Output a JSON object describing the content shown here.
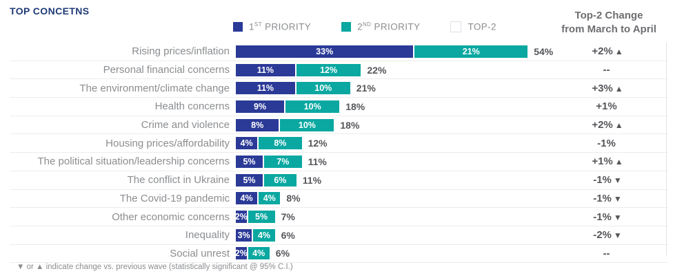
{
  "title": "TOP CONCETNS",
  "legend": {
    "items": [
      {
        "prefix": "1",
        "sup": "ST",
        "rest": " PRIORITY",
        "color": "#2b3a97",
        "style": "filled"
      },
      {
        "prefix": "2",
        "sup": "ND",
        "rest": " PRIORITY",
        "color": "#0aa8a1",
        "style": "filled"
      },
      {
        "prefix": "TOP-2",
        "sup": "",
        "rest": "",
        "color": "#ffffff",
        "style": "outline"
      }
    ]
  },
  "change_header": {
    "line1": "Top-2 Change",
    "line2": "from March to April"
  },
  "colors": {
    "first_priority": "#2b3a97",
    "second_priority": "#0aa8a1",
    "title": "#1f3b77",
    "row_label": "#8b8d90",
    "value_text": "#55565a",
    "separator": "#ececec"
  },
  "rows": [
    {
      "label": "Rising prices/inflation",
      "p1": 33,
      "p1_label": "33%",
      "p2": 21,
      "p2_label": "21%",
      "total": "54%",
      "change": "+2%",
      "arrow": "▲"
    },
    {
      "label": "Personal financial concerns",
      "p1": 11,
      "p1_label": "11%",
      "p2": 12,
      "p2_label": "12%",
      "total": "22%",
      "change": "--",
      "arrow": ""
    },
    {
      "label": "The environment/climate change",
      "p1": 11,
      "p1_label": "11%",
      "p2": 10,
      "p2_label": "10%",
      "total": "21%",
      "change": "+3%",
      "arrow": "▲"
    },
    {
      "label": "Health concerns",
      "p1": 9,
      "p1_label": "9%",
      "p2": 10,
      "p2_label": "10%",
      "total": "18%",
      "change": "+1%",
      "arrow": ""
    },
    {
      "label": "Crime and violence",
      "p1": 8,
      "p1_label": "8%",
      "p2": 10,
      "p2_label": "10%",
      "total": "18%",
      "change": "+2%",
      "arrow": "▲"
    },
    {
      "label": "Housing prices/affordability",
      "p1": 4,
      "p1_label": "4%",
      "p2": 8,
      "p2_label": "8%",
      "total": "12%",
      "change": "-1%",
      "arrow": ""
    },
    {
      "label": "The political situation/leadership concerns",
      "p1": 5,
      "p1_label": "5%",
      "p2": 7,
      "p2_label": "7%",
      "total": "11%",
      "change": "+1%",
      "arrow": "▲"
    },
    {
      "label": "The conflict in Ukraine",
      "p1": 5,
      "p1_label": "5%",
      "p2": 6,
      "p2_label": "6%",
      "total": "11%",
      "change": "-1%",
      "arrow": "▼"
    },
    {
      "label": "The Covid-19 pandemic",
      "p1": 4,
      "p1_label": "4%",
      "p2": 4,
      "p2_label": "4%",
      "total": "8%",
      "change": "-1%",
      "arrow": "▼"
    },
    {
      "label": "Other economic concerns",
      "p1": 2,
      "p1_label": "2%",
      "p2": 5,
      "p2_label": "5%",
      "total": "7%",
      "change": "-1%",
      "arrow": "▼"
    },
    {
      "label": "Inequality",
      "p1": 3,
      "p1_label": "3%",
      "p2": 4,
      "p2_label": "4%",
      "total": "6%",
      "change": "-2%",
      "arrow": "▼"
    },
    {
      "label": "Social unrest",
      "p1": 2,
      "p1_label": "2%",
      "p2": 4,
      "p2_label": "4%",
      "total": "6%",
      "change": "--",
      "arrow": ""
    }
  ],
  "footnote": "▼ or ▲ indicate change vs. previous wave (statistically significant @ 95% C.I.)",
  "chart_data": {
    "type": "bar",
    "orientation": "horizontal",
    "stacked": true,
    "title": "TOP CONCETNS",
    "categories": [
      "Rising prices/inflation",
      "Personal financial concerns",
      "The environment/climate change",
      "Health concerns",
      "Crime and violence",
      "Housing prices/affordability",
      "The political situation/leadership concerns",
      "The conflict in Ukraine",
      "The Covid-19 pandemic",
      "Other economic concerns",
      "Inequality",
      "Social unrest"
    ],
    "series": [
      {
        "name": "1st Priority",
        "color": "#2b3a97",
        "values": [
          33,
          11,
          11,
          9,
          8,
          4,
          5,
          5,
          4,
          2,
          3,
          2
        ]
      },
      {
        "name": "2nd Priority",
        "color": "#0aa8a1",
        "values": [
          21,
          12,
          10,
          10,
          10,
          8,
          7,
          6,
          4,
          5,
          4,
          4
        ]
      }
    ],
    "totals_top2": [
      "54%",
      "22%",
      "21%",
      "18%",
      "18%",
      "12%",
      "11%",
      "11%",
      "8%",
      "7%",
      "6%",
      "6%"
    ],
    "top2_change_march_to_april": [
      "+2%▲",
      "--",
      "+3%▲",
      "+1%",
      "+2%▲",
      "-1%",
      "+1%▲",
      "-1%▼",
      "-1%▼",
      "-1%▼",
      "-2%▼",
      "--"
    ],
    "xlim": [
      0,
      57
    ],
    "grid": false,
    "legend_position": "top",
    "data_labels": "inside-segments-and-total"
  }
}
